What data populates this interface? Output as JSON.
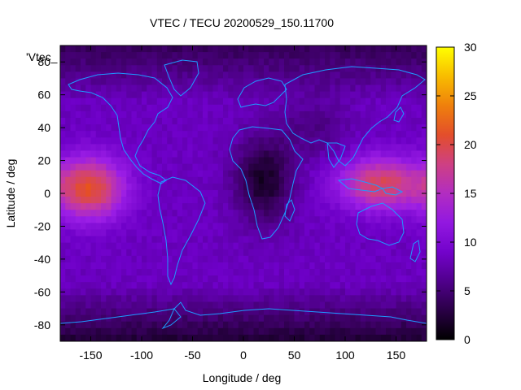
{
  "chart_data": {
    "type": "heatmap",
    "title": "VTEC / TECU 20200529_150.11700",
    "xlabel": "Longitude / deg",
    "ylabel": "Latitude / deg",
    "key_label": "'Vtec_",
    "xlim": [
      -180,
      180
    ],
    "ylim": [
      -90,
      90
    ],
    "x_ticks": [
      -150,
      -100,
      -50,
      0,
      50,
      100,
      150
    ],
    "y_ticks": [
      -80,
      -60,
      -40,
      -20,
      0,
      20,
      40,
      60,
      80
    ],
    "colorbar_ticks": [
      0,
      5,
      10,
      15,
      20,
      25,
      30
    ],
    "zlim": [
      0,
      30
    ],
    "palette": [
      "#000000",
      "#3c0064",
      "#6e00c8",
      "#9b1ee6",
      "#c83c9c",
      "#e6501e",
      "#f5a000",
      "#ffff00"
    ],
    "coastline_color": "#1e9bff",
    "features": [
      {
        "region": "Central Pacific crest",
        "lon": [
          -180,
          -125
        ],
        "lat": [
          -20,
          30
        ],
        "value": 20
      },
      {
        "region": "Asia / Western Pacific crest",
        "lon": [
          90,
          180
        ],
        "lat": [
          -15,
          30
        ],
        "value": 19
      },
      {
        "region": "Africa night-side trough",
        "lon": [
          0,
          40
        ],
        "lat": [
          -5,
          15
        ],
        "value": 1.5
      },
      {
        "region": "Polar regions",
        "lat": [
          60,
          90
        ],
        "value": 4
      },
      {
        "region": "Antarctic band",
        "lat": [
          -90,
          -75
        ],
        "value": 2
      }
    ]
  }
}
